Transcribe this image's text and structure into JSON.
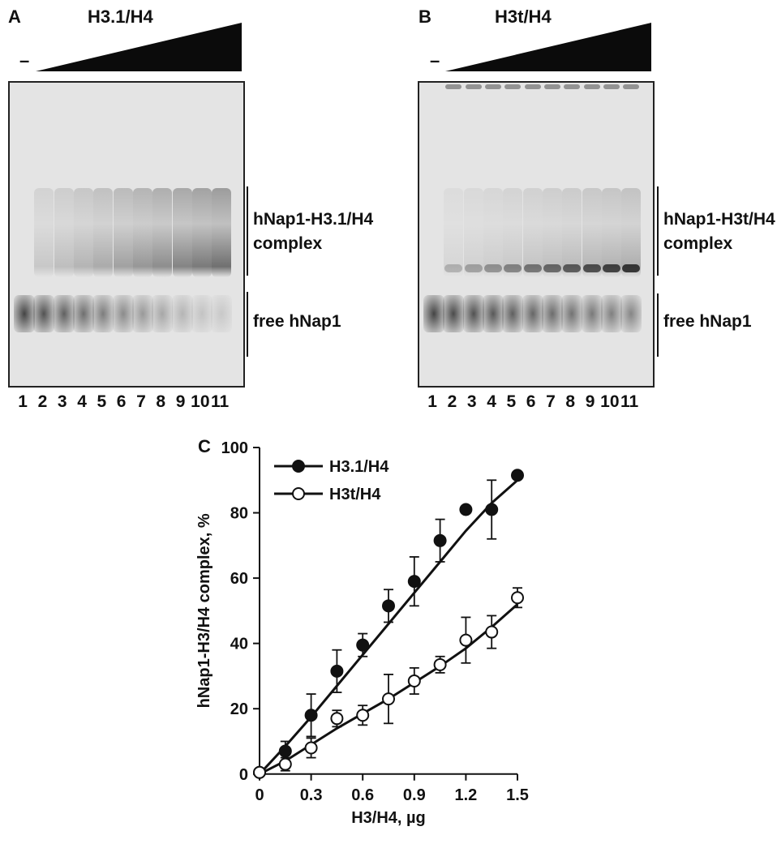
{
  "panels": [
    {
      "letter": "A",
      "title": "H3.1/H4",
      "minus": "–",
      "lanes": [
        "1",
        "2",
        "3",
        "4",
        "5",
        "6",
        "7",
        "8",
        "9",
        "10",
        "11"
      ],
      "complex_label_1": "hNap1-H3.1/H4",
      "complex_label_2": "complex",
      "free_label": "free hNap1"
    },
    {
      "letter": "B",
      "title": "H3t/H4",
      "minus": "–",
      "lanes": [
        "1",
        "2",
        "3",
        "4",
        "5",
        "6",
        "7",
        "8",
        "9",
        "10",
        "11"
      ],
      "complex_label_1": "hNap1-H3t/H4",
      "complex_label_2": "complex",
      "free_label": "free hNap1"
    }
  ],
  "chart_data": {
    "letter": "C",
    "type": "scatter",
    "xlabel": "H3/H4, µg",
    "ylabel": "hNap1-H3/H4 complex, %",
    "xlim": [
      0,
      1.5
    ],
    "ylim": [
      0,
      100
    ],
    "xticks": [
      "0",
      "0.3",
      "0.6",
      "0.9",
      "1.2",
      "1.5"
    ],
    "yticks": [
      "0",
      "20",
      "40",
      "60",
      "80",
      "100"
    ],
    "legend_position": "top-left",
    "series": [
      {
        "name": "H3.1/H4",
        "marker": "filled-circle",
        "color": "#111111",
        "x": [
          0,
          0.15,
          0.3,
          0.45,
          0.6,
          0.75,
          0.9,
          1.05,
          1.2,
          1.35,
          1.5
        ],
        "y": [
          0.5,
          7,
          18,
          31.5,
          39.5,
          51.5,
          59,
          71.5,
          81,
          81,
          91.5
        ],
        "err": [
          0,
          3,
          6.5,
          6.5,
          3.5,
          5,
          7.5,
          6.5,
          0,
          9,
          1
        ],
        "fit": [
          [
            0,
            0
          ],
          [
            0.15,
            8.5
          ],
          [
            0.3,
            17.5
          ],
          [
            0.45,
            27
          ],
          [
            0.6,
            36.5
          ],
          [
            0.75,
            46
          ],
          [
            0.9,
            55.5
          ],
          [
            1.05,
            65
          ],
          [
            1.2,
            74.5
          ],
          [
            1.35,
            83
          ],
          [
            1.5,
            90
          ]
        ]
      },
      {
        "name": "H3t/H4",
        "marker": "open-circle",
        "color": "#111111",
        "x": [
          0,
          0.15,
          0.3,
          0.45,
          0.6,
          0.75,
          0.9,
          1.05,
          1.2,
          1.35,
          1.5
        ],
        "y": [
          0.5,
          3,
          8,
          17,
          18,
          23,
          28.5,
          33.5,
          41,
          43.5,
          54
        ],
        "err": [
          0,
          2,
          3,
          2.5,
          3,
          7.5,
          4,
          2.5,
          7,
          5,
          3
        ],
        "fit": [
          [
            0,
            0
          ],
          [
            0.15,
            4
          ],
          [
            0.3,
            9
          ],
          [
            0.45,
            14
          ],
          [
            0.6,
            18.5
          ],
          [
            0.75,
            23
          ],
          [
            0.9,
            28
          ],
          [
            1.05,
            33
          ],
          [
            1.2,
            38.5
          ],
          [
            1.35,
            45
          ],
          [
            1.5,
            52
          ]
        ]
      }
    ]
  }
}
